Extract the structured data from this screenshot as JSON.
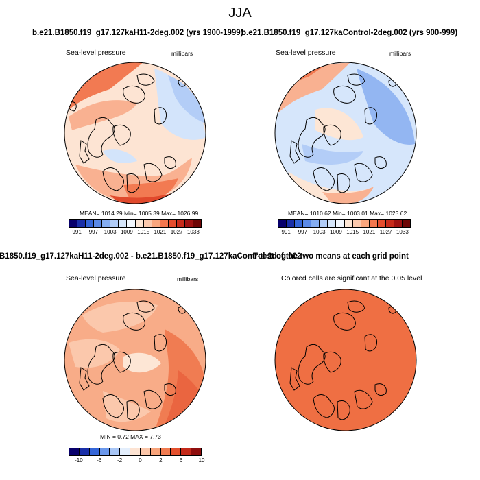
{
  "figure_title": "JJA",
  "panel_titles": {
    "top_left": "b.e21.B1850.f19_g17.127kaH11-2deg.002 (yrs 1900-1999)",
    "top_right": "b.e21.B1850.f19_g17.127kaControl-2deg.002 (yrs 900-999)",
    "bottom_left": "B1850.f19_g17.127kaH11-2deg.002 - b.e21.B1850.f19_g17.127kaControl-2deg.002",
    "bottom_right": "T-test of the two means at each grid point"
  },
  "maps": [
    {
      "variable": "Sea-level pressure",
      "units": "millibars",
      "stats": "MEAN= 1014.29  Min= 1005.39  Max= 1026.99"
    },
    {
      "variable": "Sea-level pressure",
      "units": "millibars",
      "stats": "MEAN= 1010.62  Min= 1003.01  Max= 1023.62"
    },
    {
      "variable": "Sea-level pressure",
      "units": "millibars",
      "stats": "MIN =  0.72 MAX =  7.73"
    },
    {
      "variable": "Colored cells are significant at the 0.05 level",
      "units": "",
      "stats": ""
    }
  ],
  "colorbars": {
    "absolute": {
      "labels": [
        "991",
        "997",
        "1003",
        "1009",
        "1015",
        "1021",
        "1027",
        "1033"
      ],
      "colors": [
        "#08006b",
        "#1a2fa8",
        "#3566d8",
        "#5b8ae8",
        "#86aef2",
        "#b1ccf7",
        "#d6e6fb",
        "#f2f7fe",
        "#fde6d5",
        "#fbc9ae",
        "#f9a67e",
        "#f3774f",
        "#e54d2e",
        "#c72b1b",
        "#9e1212",
        "#6e0606"
      ]
    },
    "difference": {
      "labels": [
        "-10",
        "-6",
        "-2",
        "0",
        "2",
        "6",
        "10"
      ],
      "colors": [
        "#08006b",
        "#1a2fa8",
        "#3566d8",
        "#6b98ec",
        "#a8c6f6",
        "#e3eefc",
        "#fde3d2",
        "#fbc6a9",
        "#f8a47b",
        "#f17c51",
        "#e4512e",
        "#c42a1a",
        "#8f0e0e"
      ]
    }
  },
  "map_colors": {
    "map1": {
      "base": "#fde4d3",
      "blue": "#d3e4fb",
      "blue2": "#b3cdf7",
      "red1": "#f9b191",
      "red2": "#f27a52",
      "red3": "#e0492c"
    },
    "map2": {
      "base": "#d6e6fb",
      "blue": "#b3cdf7",
      "blue2": "#93b6f2",
      "pale": "#fde6d5",
      "red1": "#f9b191",
      "red2": "#f27a52"
    },
    "map3": {
      "base": "#f8ac88",
      "light": "#fbc8ac",
      "pale": "#fde6d5",
      "red": "#f07c52",
      "red2": "#ea6540"
    },
    "map4": {
      "base": "#ef6f43"
    }
  }
}
